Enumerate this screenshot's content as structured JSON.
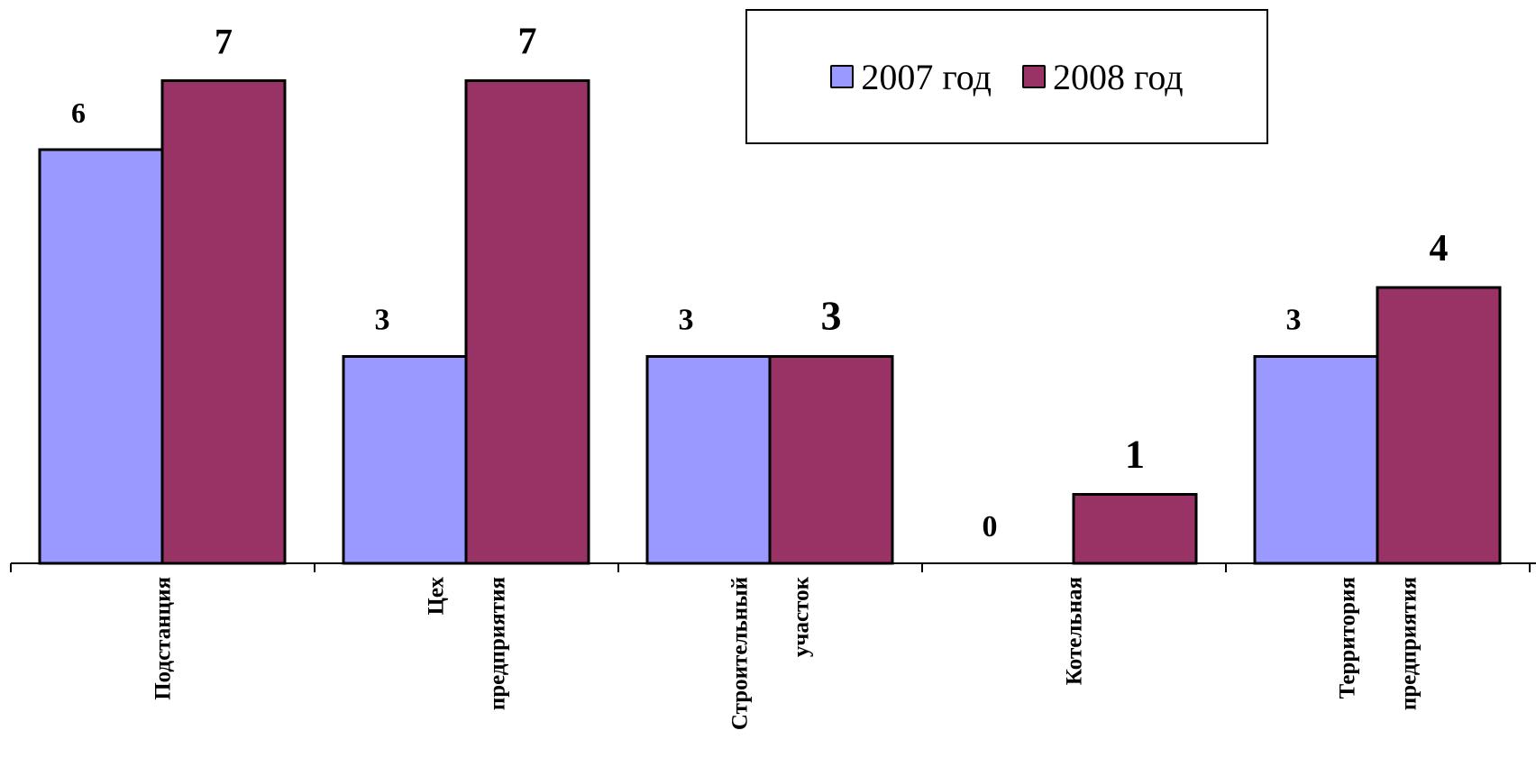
{
  "chart_data": {
    "type": "bar",
    "categories": [
      [
        "Подстанция"
      ],
      [
        "Цех",
        "предприятия"
      ],
      [
        "Строительный",
        "участок"
      ],
      [
        "Котельная"
      ],
      [
        "Территория",
        "предприятия"
      ]
    ],
    "series": [
      {
        "name": "2007 год",
        "values": [
          6,
          3,
          3,
          0,
          3
        ],
        "color": "#9999FF"
      },
      {
        "name": "2008 год",
        "values": [
          7,
          7,
          3,
          1,
          4
        ],
        "color": "#993366"
      }
    ],
    "ylim": [
      0,
      7
    ],
    "title": "",
    "xlabel": "",
    "ylabel": "",
    "grid": false,
    "legend_position": "top-right"
  }
}
